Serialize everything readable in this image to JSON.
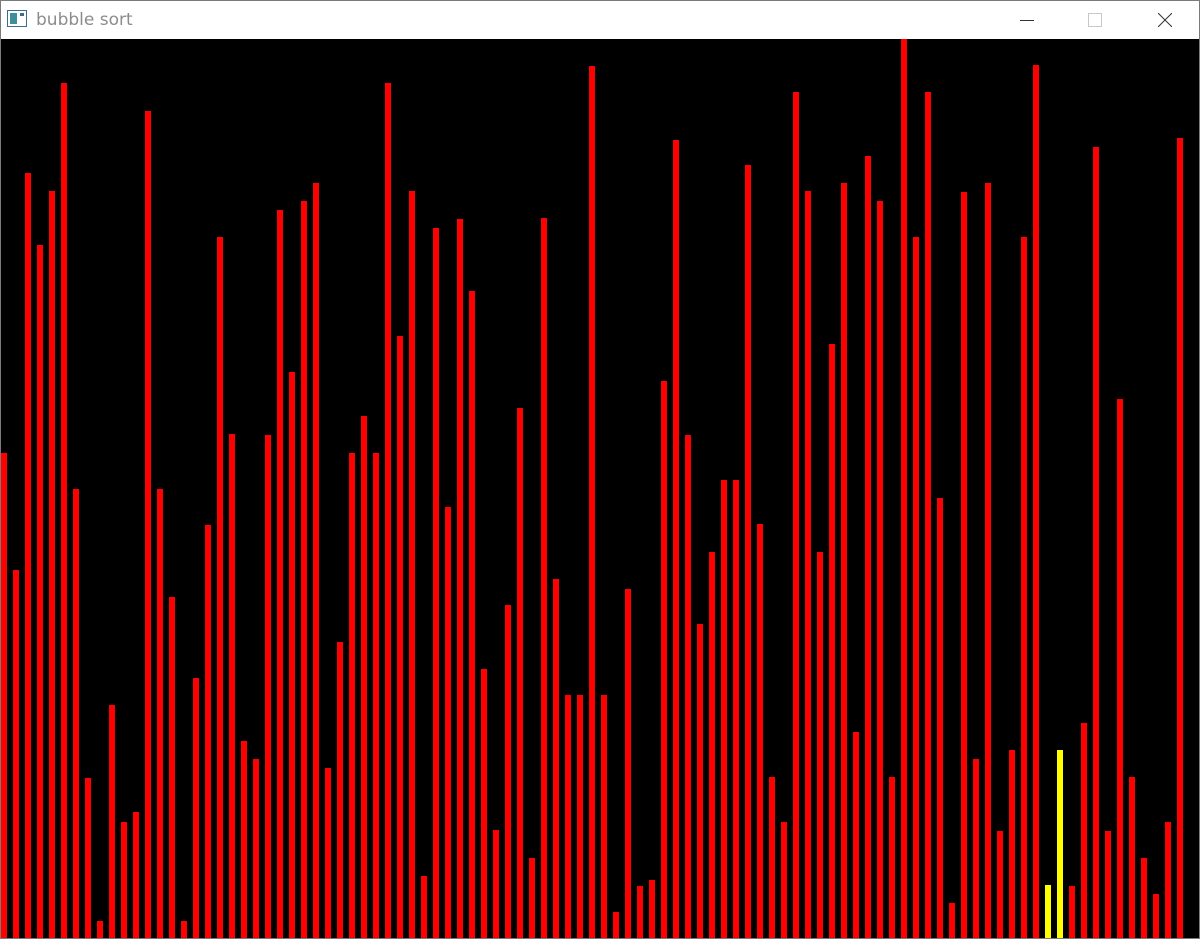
{
  "window": {
    "title": "bubble sort",
    "icon": "app-window-icon",
    "controls": {
      "minimize": "minimize-icon",
      "maximize": "maximize-icon",
      "close": "close-icon"
    }
  },
  "colors": {
    "bar": "#ff0000",
    "highlight": "#ffff00",
    "background": "#000000"
  },
  "chart_data": {
    "type": "bar",
    "ylim": [
      0,
      899
    ],
    "values": [
      485,
      368,
      765,
      693,
      747,
      855,
      449,
      160,
      17,
      233,
      116,
      126,
      827,
      449,
      341,
      17,
      260,
      413,
      701,
      504,
      197,
      179,
      503,
      728,
      566,
      737,
      755,
      170,
      296,
      485,
      522,
      485,
      855,
      602,
      747,
      62,
      710,
      431,
      719,
      647,
      269,
      108,
      333,
      530,
      80,
      720,
      359,
      243,
      243,
      872,
      243,
      26,
      349,
      52,
      58,
      557,
      798,
      503,
      314,
      386,
      458,
      458,
      773,
      414,
      161,
      116,
      846,
      747,
      386,
      594,
      755,
      206,
      782,
      737,
      161,
      899,
      701,
      846,
      440,
      35,
      746,
      179,
      755,
      107,
      188,
      701,
      873,
      53,
      188,
      52,
      215,
      791,
      107,
      539,
      161,
      80,
      44,
      116,
      800
    ],
    "highlight_indices": [
      87,
      88
    ]
  }
}
